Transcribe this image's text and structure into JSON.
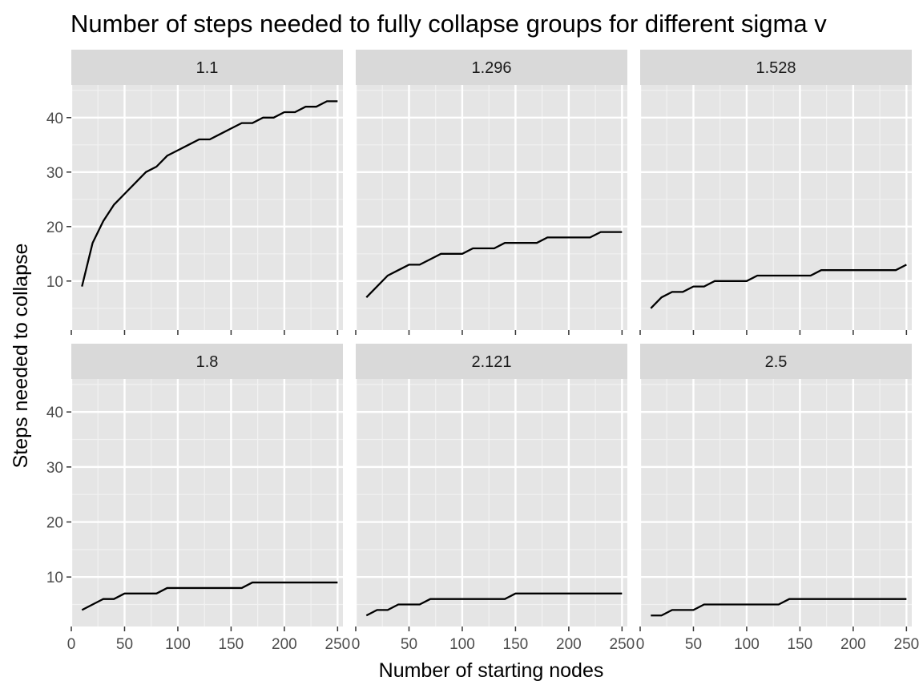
{
  "chart_data": {
    "type": "line",
    "title": "Number of steps needed to fully collapse groups for different sigma v",
    "xlabel": "Number of starting nodes",
    "ylabel": "Steps needed to collapse",
    "xlim": [
      0,
      255
    ],
    "ylim": [
      1,
      46
    ],
    "x_ticks": [
      0,
      50,
      100,
      150,
      200,
      250
    ],
    "y_ticks": [
      10,
      20,
      30,
      40
    ],
    "layout": "facet-wrap 2 rows x 3 columns",
    "grid": true,
    "line_color": "#000000",
    "panel_background": "#e5e5e5",
    "strip_background": "#d9d9d9",
    "x": [
      10,
      20,
      30,
      40,
      50,
      60,
      70,
      80,
      90,
      100,
      110,
      120,
      130,
      140,
      150,
      160,
      170,
      180,
      190,
      200,
      210,
      220,
      230,
      240,
      250
    ],
    "facets": [
      {
        "label": "1.1",
        "values": [
          9,
          17,
          21,
          24,
          26,
          28,
          30,
          31,
          33,
          34,
          35,
          36,
          36,
          37,
          38,
          39,
          39,
          40,
          40,
          41,
          41,
          42,
          42,
          43,
          43
        ]
      },
      {
        "label": "1.296",
        "values": [
          7,
          9,
          11,
          12,
          13,
          13,
          14,
          15,
          15,
          15,
          16,
          16,
          16,
          17,
          17,
          17,
          17,
          18,
          18,
          18,
          18,
          18,
          19,
          19,
          19
        ]
      },
      {
        "label": "1.528",
        "values": [
          5,
          7,
          8,
          8,
          9,
          9,
          10,
          10,
          10,
          10,
          11,
          11,
          11,
          11,
          11,
          11,
          12,
          12,
          12,
          12,
          12,
          12,
          12,
          12,
          13
        ]
      },
      {
        "label": "1.8",
        "values": [
          4,
          5,
          6,
          6,
          7,
          7,
          7,
          7,
          8,
          8,
          8,
          8,
          8,
          8,
          8,
          8,
          9,
          9,
          9,
          9,
          9,
          9,
          9,
          9,
          9
        ]
      },
      {
        "label": "2.121",
        "values": [
          3,
          4,
          4,
          5,
          5,
          5,
          6,
          6,
          6,
          6,
          6,
          6,
          6,
          6,
          7,
          7,
          7,
          7,
          7,
          7,
          7,
          7,
          7,
          7,
          7
        ]
      },
      {
        "label": "2.5",
        "values": [
          3,
          3,
          4,
          4,
          4,
          5,
          5,
          5,
          5,
          5,
          5,
          5,
          5,
          6,
          6,
          6,
          6,
          6,
          6,
          6,
          6,
          6,
          6,
          6,
          6
        ]
      }
    ]
  }
}
